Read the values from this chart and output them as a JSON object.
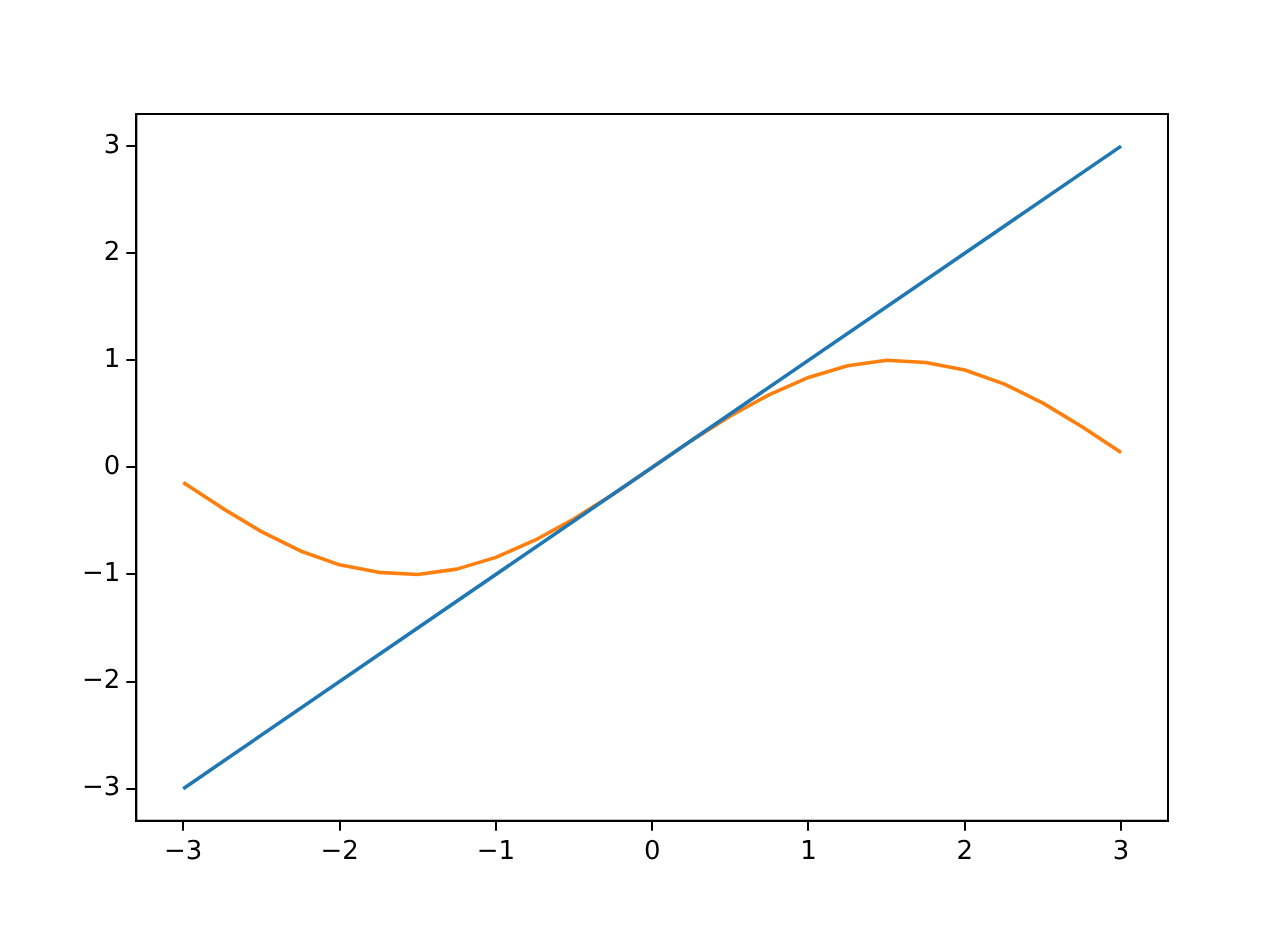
{
  "chart_data": {
    "type": "line",
    "xlim": [
      -3.3,
      3.3
    ],
    "ylim": [
      -3.3,
      3.3
    ],
    "xticks": [
      -3,
      -2,
      -1,
      0,
      1,
      2,
      3
    ],
    "yticks": [
      -3,
      -2,
      -1,
      0,
      1,
      2,
      3
    ],
    "grid": false,
    "legend": false,
    "series": [
      {
        "color": "#1f77b4",
        "x": [
          -3,
          3
        ],
        "values": [
          -3,
          3
        ]
      },
      {
        "color": "#ff7f0e",
        "x": [
          -3,
          -2.75,
          -2.5,
          -2.25,
          -2,
          -1.75,
          -1.5,
          -1.25,
          -1,
          -0.75,
          -0.5,
          -0.25,
          0,
          0.25,
          0.5,
          0.75,
          1,
          1.25,
          1.5,
          1.75,
          2,
          2.25,
          2.5,
          2.75,
          3
        ],
        "values": [
          -0.14,
          -0.38,
          -0.6,
          -0.78,
          -0.91,
          -0.98,
          -1.0,
          -0.95,
          -0.84,
          -0.68,
          -0.48,
          -0.25,
          0,
          0.25,
          0.48,
          0.68,
          0.84,
          0.95,
          1.0,
          0.98,
          0.91,
          0.78,
          0.6,
          0.38,
          0.14
        ]
      }
    ]
  }
}
